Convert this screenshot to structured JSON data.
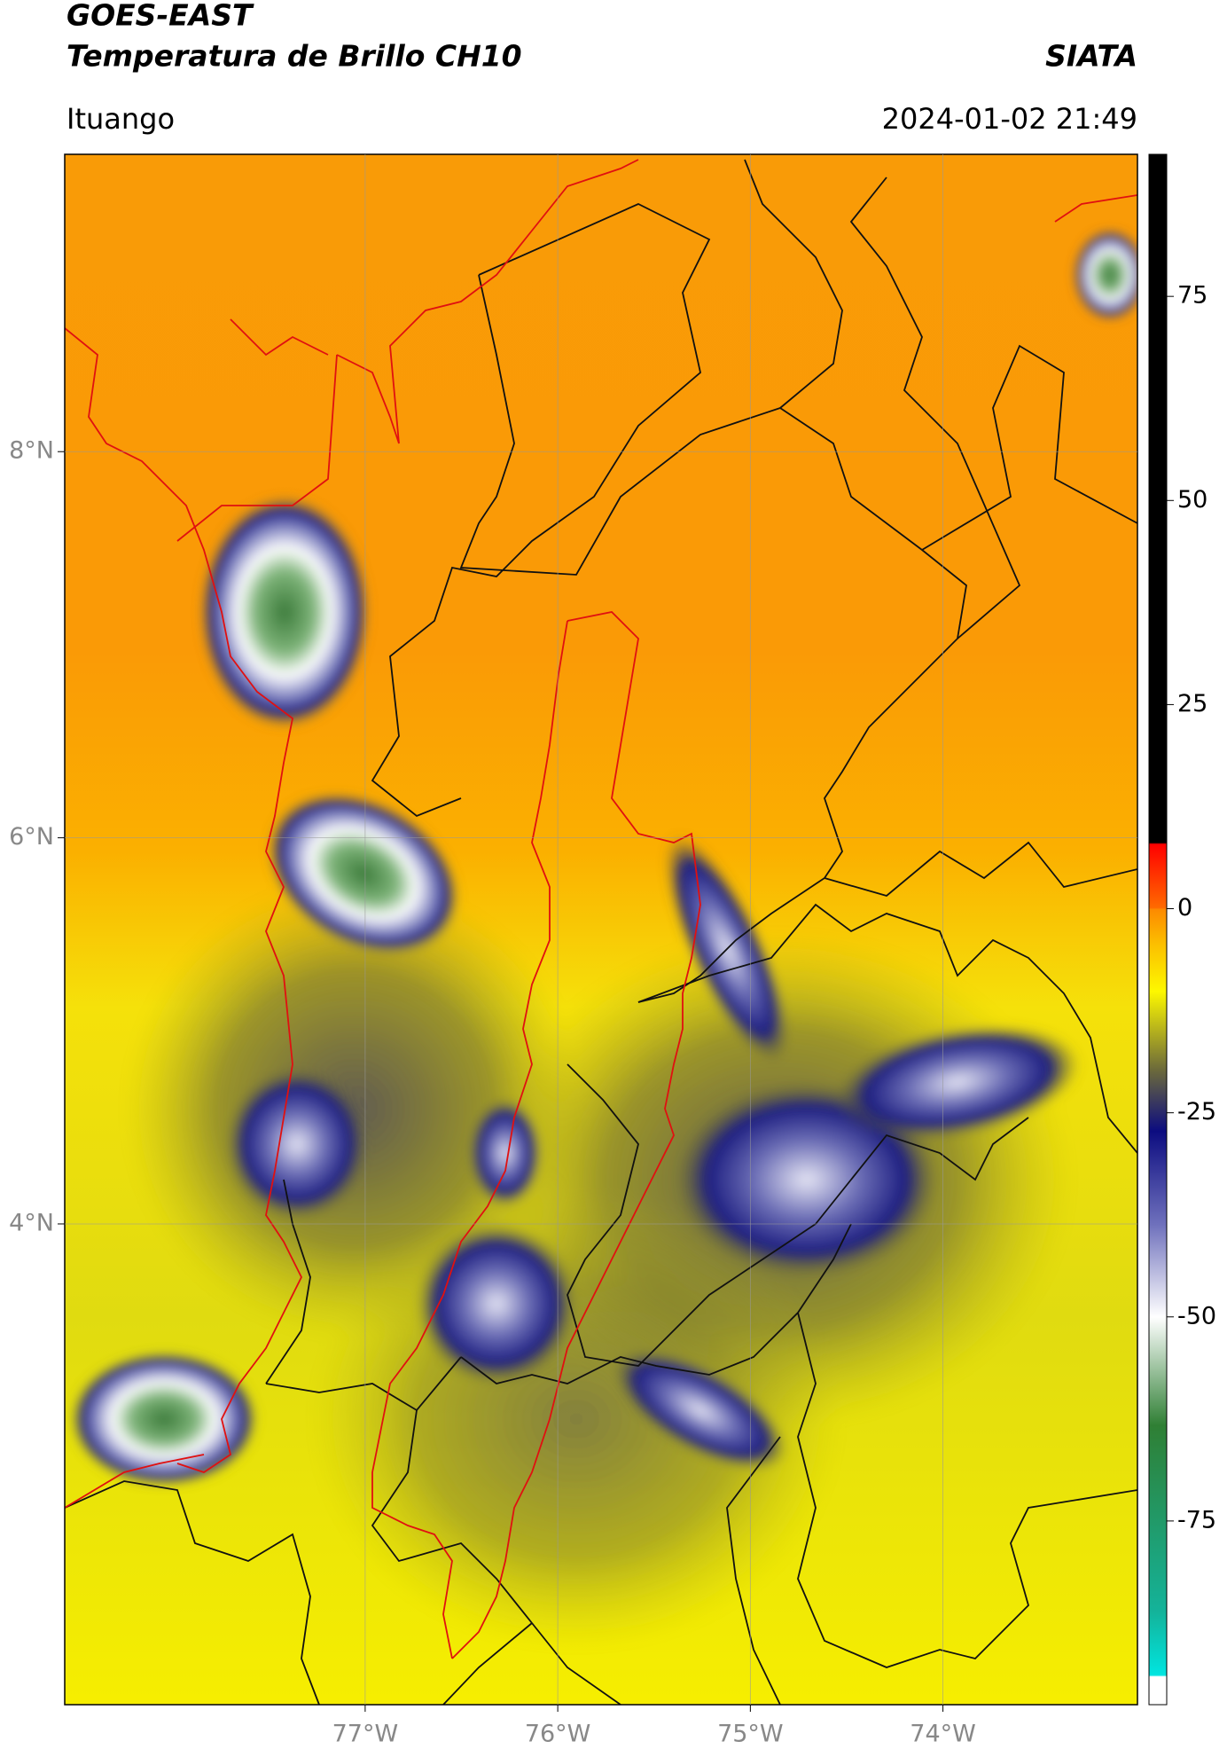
{
  "header": {
    "title": "GOES-EAST",
    "subtitle": "Temperatura de Brillo CH10",
    "agency": "SIATA",
    "location": "Ituango",
    "datetime": "2024-01-02 21:49"
  },
  "map": {
    "xlim": [
      -78.56,
      -72.99
    ],
    "ylim": [
      1.51,
      9.54
    ],
    "xticks": [
      {
        "value": -77,
        "label": "77°W"
      },
      {
        "value": -76,
        "label": "76°W"
      },
      {
        "value": -75,
        "label": "75°W"
      },
      {
        "value": -74,
        "label": "74°W"
      }
    ],
    "yticks": [
      {
        "value": 8,
        "label": "8°N"
      },
      {
        "value": 6,
        "label": "6°N"
      },
      {
        "value": 4,
        "label": "4°N"
      }
    ],
    "grid": true
  },
  "colorbar": {
    "lim": [
      -97.5,
      92.4
    ],
    "ticks": [
      75,
      50,
      25,
      0,
      -25,
      -50,
      -75
    ]
  }
}
